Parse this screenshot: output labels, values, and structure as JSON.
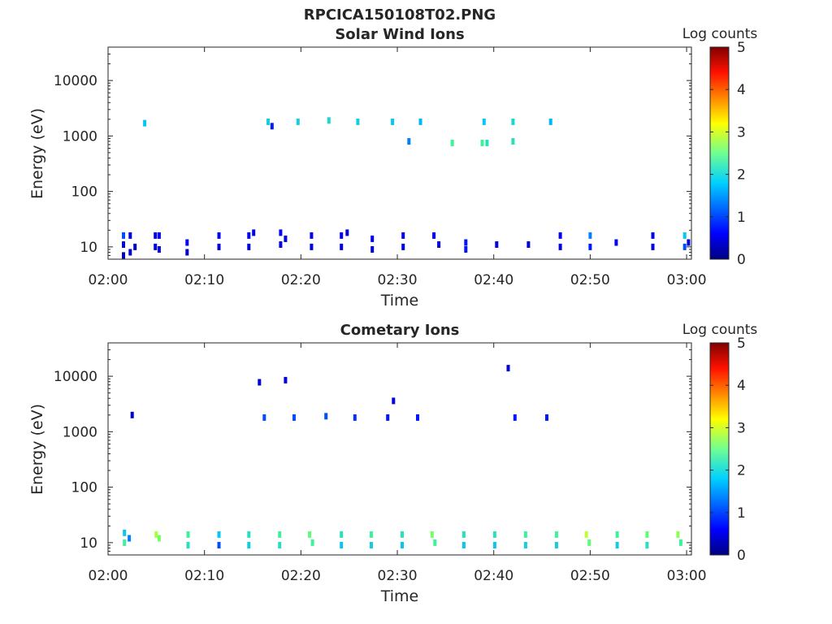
{
  "figure_title": "RPCICA150108T02.PNG",
  "colors": {
    "colormap": [
      "#000080",
      "#0000ff",
      "#00bfff",
      "#4dff80",
      "#ffff00",
      "#ff8000",
      "#ff0000",
      "#800000"
    ],
    "axis": "#262626"
  },
  "chart_data": [
    {
      "type": "heatmap",
      "title": "Solar Wind Ions",
      "xlabel": "Time",
      "ylabel": "Energy (eV)",
      "x_ticks": [
        "02:00",
        "02:10",
        "02:20",
        "02:30",
        "02:40",
        "02:50",
        "03:00"
      ],
      "x_range_min": [
        0,
        60.5
      ],
      "y_scale": "log",
      "y_ticks": [
        "10",
        "100",
        "1000",
        "10000"
      ],
      "y_range": [
        6,
        40000
      ],
      "colorbar": {
        "label": "Log counts",
        "ticks": [
          "0",
          "1",
          "2",
          "3",
          "4",
          "5"
        ],
        "range": [
          0,
          5
        ]
      },
      "pixels": [
        [
          1.6,
          16,
          1
        ],
        [
          1.6,
          11,
          0.5
        ],
        [
          1.6,
          7,
          0.3
        ],
        [
          2.3,
          16,
          0.5
        ],
        [
          2.3,
          8,
          0.4
        ],
        [
          2.8,
          10,
          0.3
        ],
        [
          4.9,
          16,
          0.6
        ],
        [
          4.9,
          10,
          0.6
        ],
        [
          5.3,
          16,
          0.6
        ],
        [
          5.3,
          9,
          0.5
        ],
        [
          8.2,
          12,
          0.6
        ],
        [
          8.2,
          8,
          0.4
        ],
        [
          11.5,
          16,
          0.6
        ],
        [
          11.5,
          10,
          0.5
        ],
        [
          14.6,
          16,
          0.6
        ],
        [
          14.6,
          10,
          0.5
        ],
        [
          15.1,
          18,
          0.5
        ],
        [
          17.9,
          18,
          0.7
        ],
        [
          17.9,
          11,
          0.6
        ],
        [
          18.4,
          14,
          0.5
        ],
        [
          21.1,
          16,
          0.6
        ],
        [
          21.1,
          10,
          0.5
        ],
        [
          24.2,
          16,
          0.6
        ],
        [
          24.2,
          10,
          0.5
        ],
        [
          24.8,
          18,
          0.5
        ],
        [
          27.4,
          14,
          0.6
        ],
        [
          27.4,
          9,
          0.5
        ],
        [
          30.6,
          16,
          0.6
        ],
        [
          30.6,
          10,
          0.5
        ],
        [
          33.8,
          16,
          0.6
        ],
        [
          34.3,
          11,
          0.5
        ],
        [
          37.1,
          12,
          0.8
        ],
        [
          37.1,
          9,
          0.8
        ],
        [
          40.3,
          11,
          0.6
        ],
        [
          43.6,
          11,
          0.5
        ],
        [
          46.9,
          16,
          0.6
        ],
        [
          46.9,
          10,
          0.5
        ],
        [
          50.0,
          16,
          1.2
        ],
        [
          50.0,
          10,
          0.8
        ],
        [
          52.7,
          12,
          0.6
        ],
        [
          56.5,
          16,
          0.6
        ],
        [
          56.5,
          10,
          0.5
        ],
        [
          59.8,
          16,
          1.5
        ],
        [
          59.8,
          10,
          1.0
        ],
        [
          60.2,
          12,
          0.5
        ],
        [
          3.8,
          1700,
          1.5
        ],
        [
          16.6,
          1800,
          1.6
        ],
        [
          19.7,
          1800,
          1.6
        ],
        [
          22.9,
          1900,
          1.7
        ],
        [
          25.9,
          1800,
          1.6
        ],
        [
          29.5,
          1800,
          1.5
        ],
        [
          32.4,
          1800,
          1.4
        ],
        [
          35.7,
          750,
          2.0
        ],
        [
          38.8,
          750,
          2.0
        ],
        [
          39.3,
          750,
          1.8
        ],
        [
          39.0,
          1800,
          1.5
        ],
        [
          42.0,
          1800,
          1.7
        ],
        [
          42.0,
          800,
          1.8
        ],
        [
          45.9,
          1800,
          1.4
        ],
        [
          31.2,
          800,
          1.2
        ],
        [
          17.0,
          1500,
          0.8
        ]
      ]
    },
    {
      "type": "heatmap",
      "title": "Cometary Ions",
      "xlabel": "Time",
      "ylabel": "Energy (eV)",
      "x_ticks": [
        "02:00",
        "02:10",
        "02:20",
        "02:30",
        "02:40",
        "02:50",
        "03:00"
      ],
      "x_range_min": [
        0,
        60.5
      ],
      "y_scale": "log",
      "y_ticks": [
        "10",
        "100",
        "1000",
        "10000"
      ],
      "y_range": [
        6,
        40000
      ],
      "colorbar": {
        "label": "Log counts",
        "ticks": [
          "0",
          "1",
          "2",
          "3",
          "4",
          "5"
        ],
        "range": [
          0,
          5
        ]
      },
      "pixels": [
        [
          1.7,
          15,
          1.5
        ],
        [
          1.7,
          10,
          2.0
        ],
        [
          2.2,
          12,
          1.2
        ],
        [
          5.0,
          14,
          2.5
        ],
        [
          5.3,
          12,
          2.3
        ],
        [
          8.3,
          14,
          2.0
        ],
        [
          8.3,
          9,
          1.8
        ],
        [
          11.5,
          14,
          1.5
        ],
        [
          11.5,
          9,
          1.0
        ],
        [
          14.6,
          14,
          1.8
        ],
        [
          14.6,
          9,
          1.6
        ],
        [
          17.8,
          14,
          2.0
        ],
        [
          17.8,
          9,
          1.8
        ],
        [
          20.9,
          14,
          2.2
        ],
        [
          21.2,
          10,
          2.0
        ],
        [
          24.2,
          14,
          1.8
        ],
        [
          24.2,
          9,
          1.5
        ],
        [
          27.3,
          14,
          2.0
        ],
        [
          27.3,
          9,
          1.6
        ],
        [
          30.5,
          14,
          1.8
        ],
        [
          30.5,
          9,
          1.5
        ],
        [
          33.6,
          14,
          2.3
        ],
        [
          33.9,
          10,
          2.0
        ],
        [
          36.9,
          14,
          1.8
        ],
        [
          36.9,
          9,
          1.5
        ],
        [
          40.1,
          14,
          1.8
        ],
        [
          40.1,
          9,
          1.5
        ],
        [
          43.3,
          14,
          2.0
        ],
        [
          43.3,
          9,
          1.6
        ],
        [
          46.5,
          14,
          2.0
        ],
        [
          46.5,
          9,
          1.6
        ],
        [
          49.6,
          14,
          2.6
        ],
        [
          49.9,
          10,
          2.2
        ],
        [
          52.8,
          14,
          2.0
        ],
        [
          52.8,
          9,
          1.6
        ],
        [
          55.9,
          14,
          2.2
        ],
        [
          55.9,
          9,
          1.8
        ],
        [
          59.1,
          14,
          2.4
        ],
        [
          59.4,
          10,
          2.0
        ],
        [
          16.2,
          1800,
          1.0
        ],
        [
          19.3,
          1800,
          1.0
        ],
        [
          22.6,
          1900,
          1.0
        ],
        [
          25.6,
          1800,
          0.9
        ],
        [
          29.0,
          1800,
          0.8
        ],
        [
          32.1,
          1800,
          0.8
        ],
        [
          42.2,
          1800,
          0.8
        ],
        [
          45.5,
          1800,
          0.8
        ],
        [
          41.5,
          14000,
          0.5
        ],
        [
          18.4,
          8500,
          0.5
        ],
        [
          15.7,
          7800,
          0.5
        ],
        [
          29.6,
          3600,
          0.5
        ],
        [
          2.5,
          2000,
          0.5
        ]
      ]
    }
  ]
}
